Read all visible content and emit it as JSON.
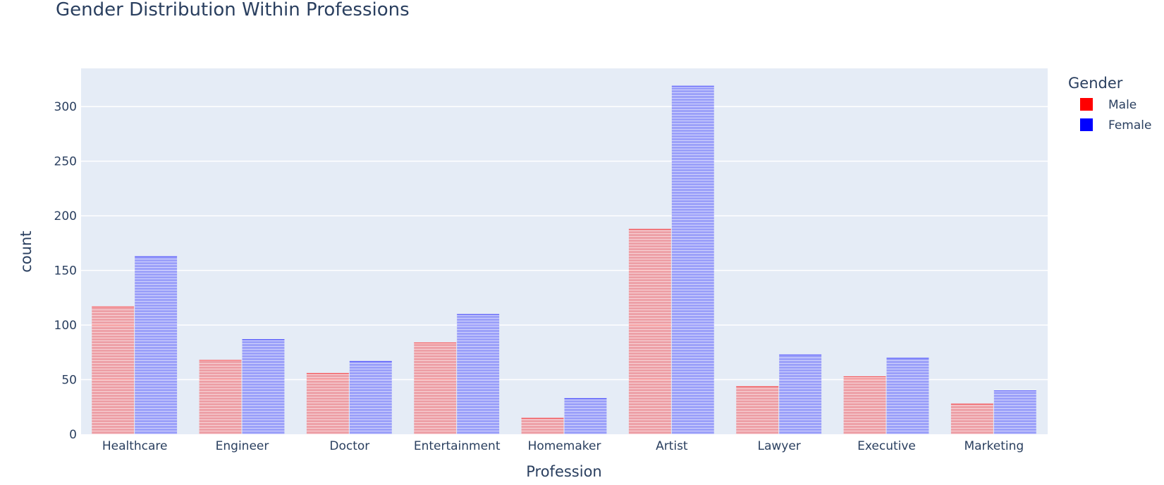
{
  "chart_data": {
    "type": "bar",
    "title": "Gender Distribution Within Professions",
    "xlabel": "Profession",
    "ylabel": "count",
    "categories": [
      "Healthcare",
      "Engineer",
      "Doctor",
      "Entertainment",
      "Homemaker",
      "Artist",
      "Lawyer",
      "Executive",
      "Marketing"
    ],
    "series": [
      {
        "name": "Male",
        "color": "#ff0000",
        "values": [
          117,
          68,
          56,
          84,
          15,
          188,
          44,
          53,
          28
        ]
      },
      {
        "name": "Female",
        "color": "#0000ff",
        "values": [
          163,
          87,
          67,
          110,
          33,
          319,
          73,
          70,
          40
        ]
      }
    ],
    "legend_title": "Gender",
    "legend_position": "top-right",
    "ylim": [
      0,
      335
    ],
    "yticks": [
      0,
      50,
      100,
      150,
      200,
      250,
      300
    ],
    "grid": true,
    "bar_pattern": "horizontal-lines",
    "plot_background": "#e5ecf6",
    "text_color": "#2a3f5f"
  }
}
